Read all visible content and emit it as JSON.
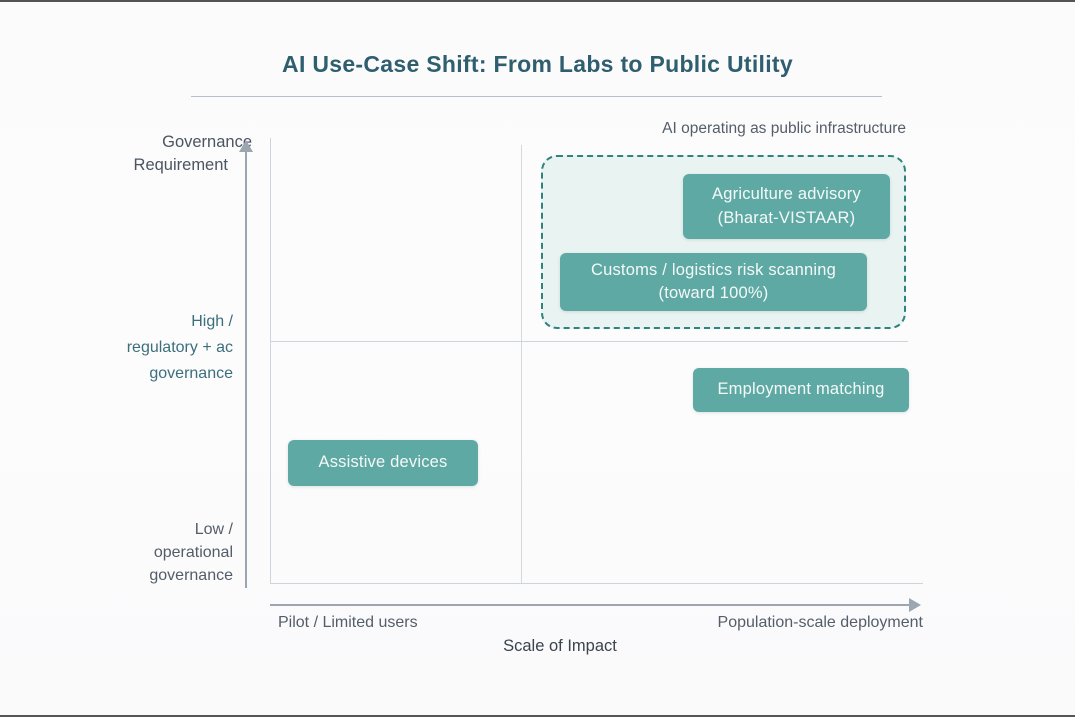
{
  "title": "AI Use-Case Shift: From Labs to Public Utility",
  "annotation": "AI operating as public infrastructure",
  "y_axis": {
    "title_lines": [
      "Governance",
      "Requirement"
    ],
    "high_label_lines": [
      "High /",
      "regulatory + ac",
      "governance"
    ],
    "low_label_lines": [
      "Low /",
      "operational",
      "governance"
    ]
  },
  "x_axis": {
    "left_label": "Pilot / Limited users",
    "right_label": "Population-scale deployment",
    "title": "Scale of Impact"
  },
  "nodes": {
    "agriculture": {
      "lines": [
        "Agriculture advisory",
        "(Bharat-VISTAAR)"
      ]
    },
    "customs": {
      "lines": [
        "Customs / logistics risk scanning",
        "(toward 100%)"
      ]
    },
    "employment": {
      "label": "Employment matching"
    },
    "assistive": {
      "label": "Assistive devices"
    }
  },
  "colors": {
    "accent_teal": "#5fa9a4",
    "dashed_border_teal": "#2e827f",
    "dashed_fill": "#e9f3f2",
    "title_text": "#2f5f6f",
    "high_label_text": "#3c6e7c",
    "gray_text": "#545e69",
    "axis_line": "#cdd4db",
    "arrow_gray": "#9ca6b0",
    "node_text": "#f4f9f9"
  },
  "chart_data": {
    "type": "scatter",
    "title": "AI Use-Case Shift: From Labs to Public Utility",
    "xlabel": "Scale of Impact",
    "ylabel": "Governance Requirement",
    "x_tick_labels": [
      "Pilot / Limited users",
      "Population-scale deployment"
    ],
    "y_tick_labels": [
      "Low / operational governance",
      "High / regulatory + ac governance"
    ],
    "annotation": "AI operating as public infrastructure",
    "grid": "2x2 quadrant divider lines",
    "legend_position": "none",
    "points": [
      {
        "label": "Agriculture advisory (Bharat-VISTAAR)",
        "x": "population-scale deployment",
        "y": "high governance",
        "quadrant": "top-right",
        "group": "AI operating as public infrastructure"
      },
      {
        "label": "Customs / logistics risk scanning (toward 100%)",
        "x": "population-scale deployment",
        "y": "high governance",
        "quadrant": "top-right",
        "group": "AI operating as public infrastructure"
      },
      {
        "label": "Employment matching",
        "x": "population-scale deployment",
        "y": "medium governance",
        "quadrant": "bottom-right",
        "group": null
      },
      {
        "label": "Assistive devices",
        "x": "pilot / limited users",
        "y": "low governance",
        "quadrant": "bottom-left",
        "group": null
      }
    ]
  }
}
